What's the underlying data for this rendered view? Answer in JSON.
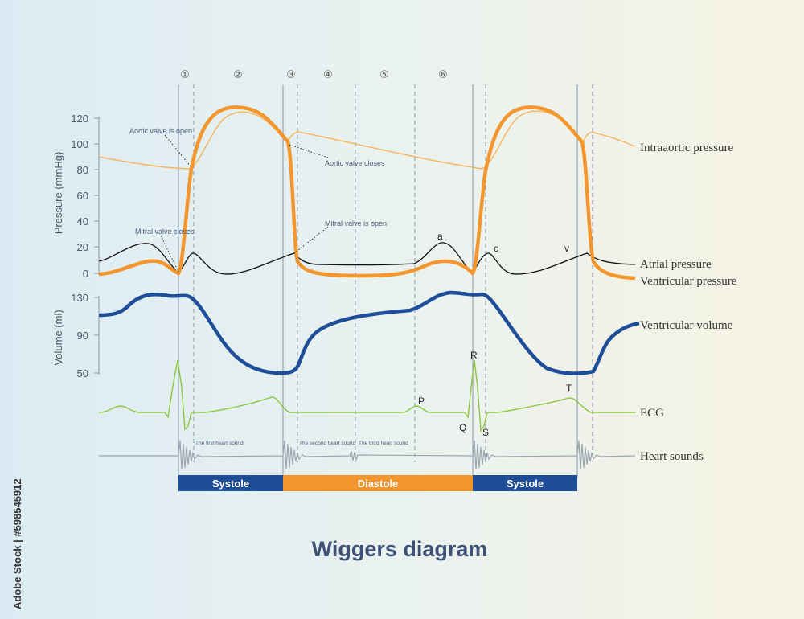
{
  "title": "Wiggers diagram",
  "credit": "Adobe Stock | #598545912",
  "phases": [
    "①",
    "②",
    "③",
    "④",
    "⑤",
    "⑥"
  ],
  "pressure_axis": {
    "title": "Pressure (mmHg)",
    "ticks": [
      "0",
      "20",
      "40",
      "60",
      "80",
      "100",
      "120"
    ]
  },
  "volume_axis": {
    "title": "Volume (ml)",
    "ticks": [
      "50",
      "90",
      "130"
    ]
  },
  "curve_labels": {
    "intraaortic": "Intraaortic pressure",
    "atrial": "Atrial pressure",
    "ventricular_pressure": "Ventricular pressure",
    "ventricular_volume": "Ventricular volume",
    "ecg": "ECG",
    "heart_sounds": "Heart sounds"
  },
  "annotations": {
    "aortic_open": "Aortic valve is open",
    "aortic_closes": "Aortic valve closes",
    "mitral_closes": "Mitral valve closes",
    "mitral_open": "Mitral valve is open",
    "first_sound": "The first heart sound",
    "second_sound": "The second heart sound",
    "third_sound": "The third heart sound"
  },
  "wave_letters": {
    "a": "a",
    "c": "c",
    "v": "v",
    "P": "P",
    "Q": "Q",
    "R": "R",
    "S": "S",
    "T": "T"
  },
  "cycle_bar": {
    "systole_1": "Systole",
    "diastole": "Diastole",
    "systole_2": "Systole",
    "colors": {
      "systole": "#1f4e99",
      "diastole": "#f2962d"
    }
  },
  "colors": {
    "ventricular_pressure": "#f2962d",
    "intraaortic": "#f5b45e",
    "atrial": "#111111",
    "volume": "#1f4e99",
    "ecg": "#8cc63f",
    "heart_sounds": "#9aa5b1"
  }
}
